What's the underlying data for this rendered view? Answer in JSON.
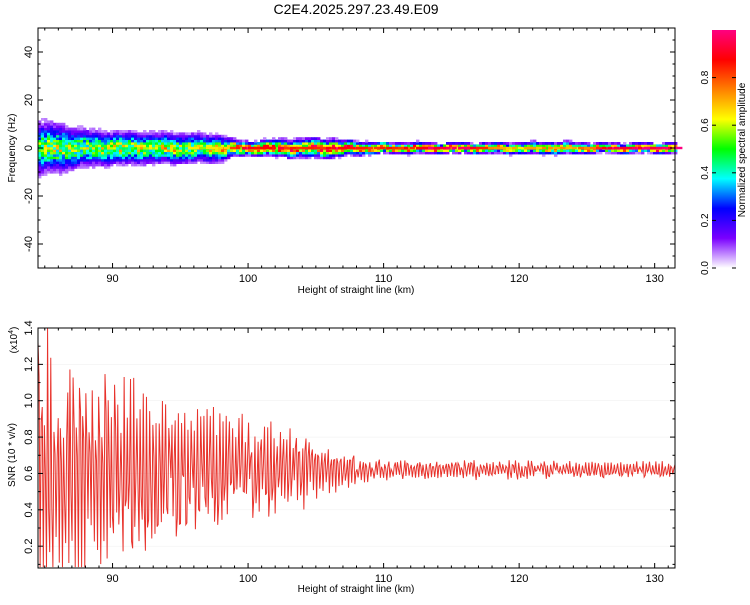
{
  "title": "C2E4.2025.297.23.49.E09",
  "colors": {
    "snr_line": "#e8322b",
    "spectrogram_background": "#ffffff"
  },
  "chart_data": [
    {
      "type": "heatmap",
      "xlabel": "Height of straight line (km)",
      "ylabel": "Frequency (Hz)",
      "xlim": [
        84.5,
        131.5
      ],
      "ylim": [
        -50,
        50
      ],
      "xticks": [
        90,
        100,
        110,
        120,
        130
      ],
      "yticks": [
        40,
        20,
        0,
        -20,
        -40
      ],
      "ytick_labels": [
        "40",
        "20",
        "0",
        "-20",
        "-40"
      ],
      "colorbar": {
        "label": "Normalized spectral amplitude",
        "range": [
          0.0,
          1.0
        ],
        "ticks": [
          0.0,
          0.2,
          0.4,
          0.6,
          0.8
        ],
        "tick_labels": [
          "0.0",
          "0.2",
          "0.4",
          "0.6",
          "0.8"
        ],
        "colormap": [
          "#ffffff",
          "#7a00ff",
          "#0000ff",
          "#00ffff",
          "#00ff00",
          "#ffff00",
          "#ff8000",
          "#ff0000",
          "#ff0080"
        ]
      },
      "band_profile": {
        "heights_km": [
          84.5,
          86,
          88,
          90,
          92,
          94,
          96,
          98,
          99,
          100,
          102,
          104,
          106,
          108,
          110,
          112,
          113,
          116,
          118,
          120,
          122,
          124,
          126,
          128,
          131.5
        ],
        "half_width_hz": [
          10,
          9,
          7,
          6,
          6,
          5.5,
          5.5,
          5,
          3,
          2.5,
          3,
          3.5,
          3.5,
          2.5,
          2,
          2,
          1.8,
          1.8,
          2,
          2.3,
          2.3,
          2.2,
          1.8,
          1.8,
          1.8
        ],
        "peak_amplitude": [
          0.5,
          0.55,
          0.5,
          0.6,
          0.55,
          0.6,
          0.55,
          0.6,
          0.8,
          0.85,
          0.85,
          0.75,
          0.85,
          0.8,
          0.8,
          0.8,
          0.9,
          0.9,
          0.7,
          0.6,
          0.7,
          0.65,
          0.8,
          0.9,
          0.9
        ]
      }
    },
    {
      "type": "line",
      "xlabel": "Height of straight line (km)",
      "ylabel": "SNR (10 * v/v)",
      "y_multiplier": "(x10^4)",
      "y_multiplier_base": "(x10",
      "y_multiplier_exp": "4",
      "y_multiplier_close": ")",
      "xlim": [
        84.5,
        131.5
      ],
      "ylim": [
        0.08,
        1.4
      ],
      "xticks": [
        90,
        100,
        110,
        120,
        130
      ],
      "yticks": [
        0.2,
        0.4,
        0.6,
        0.8,
        1.0,
        1.2,
        1.4
      ],
      "ytick_labels": [
        "0.2",
        "0.4",
        "0.6",
        "0.8",
        "1.0",
        "1.2",
        "1.4"
      ],
      "series": [
        {
          "x_range": [
            84.5,
            131.5
          ],
          "n_points": 600,
          "mean": 0.62,
          "envelope_heights_km": [
            84.5,
            85.5,
            88,
            92,
            95,
            100,
            104,
            106,
            108,
            110,
            131.5
          ],
          "envelope_amplitude": [
            0.8,
            0.75,
            0.5,
            0.45,
            0.38,
            0.25,
            0.2,
            0.12,
            0.07,
            0.05,
            0.04
          ]
        }
      ]
    }
  ]
}
